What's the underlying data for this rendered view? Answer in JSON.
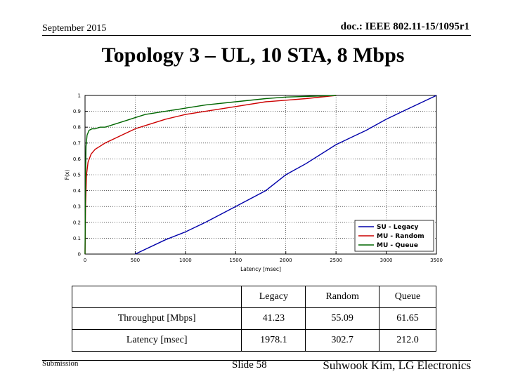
{
  "header": {
    "date": "September 2015",
    "doc_id": "doc.: IEEE 802.11-15/1095r1"
  },
  "slide": {
    "title": "Topology 3 – UL, 10 STA, 8 Mbps"
  },
  "chart_data": {
    "type": "line",
    "xlabel": "Latency [msec]",
    "ylabel": "F(x)",
    "xlim": [
      0,
      3500
    ],
    "ylim": [
      0,
      1
    ],
    "xticks": [
      0,
      500,
      1000,
      1500,
      2000,
      2500,
      3000,
      3500
    ],
    "yticks": [
      0,
      0.1,
      0.2,
      0.3,
      0.4,
      0.5,
      0.6,
      0.7,
      0.8,
      0.9,
      1
    ],
    "grid": true,
    "legend_position": "bottom-right",
    "series": [
      {
        "name": "SU - Legacy",
        "color": "#0000aa",
        "x": [
          500,
          800,
          1000,
          1200,
          1500,
          1800,
          2000,
          2200,
          2500,
          2800,
          3000,
          3200,
          3500
        ],
        "y": [
          0.0,
          0.09,
          0.14,
          0.2,
          0.3,
          0.4,
          0.5,
          0.57,
          0.69,
          0.78,
          0.85,
          0.91,
          1.0
        ]
      },
      {
        "name": "MU - Random",
        "color": "#cc0000",
        "x": [
          0,
          5,
          15,
          30,
          60,
          100,
          150,
          200,
          300,
          400,
          500,
          600,
          700,
          800,
          1000,
          1200,
          1500,
          1800,
          2000,
          2200,
          2500
        ],
        "y": [
          0.0,
          0.3,
          0.5,
          0.58,
          0.63,
          0.66,
          0.68,
          0.7,
          0.73,
          0.76,
          0.79,
          0.81,
          0.83,
          0.85,
          0.88,
          0.9,
          0.93,
          0.96,
          0.97,
          0.98,
          1.0
        ]
      },
      {
        "name": "MU - Queue",
        "color": "#006600",
        "x": [
          0,
          5,
          10,
          20,
          40,
          70,
          100,
          150,
          200,
          300,
          400,
          500,
          600,
          800,
          1000,
          1200,
          1500,
          1800,
          2000,
          2500
        ],
        "y": [
          0.0,
          0.5,
          0.68,
          0.75,
          0.78,
          0.79,
          0.79,
          0.8,
          0.8,
          0.82,
          0.84,
          0.86,
          0.88,
          0.9,
          0.92,
          0.94,
          0.96,
          0.98,
          0.99,
          1.0
        ]
      }
    ]
  },
  "table": {
    "headers": [
      "",
      "Legacy",
      "Random",
      "Queue"
    ],
    "rows": [
      [
        "Throughput [Mbps]",
        "41.23",
        "55.09",
        "61.65"
      ],
      [
        "Latency [msec]",
        "1978.1",
        "302.7",
        "212.0"
      ]
    ]
  },
  "footer": {
    "submission": "Submission",
    "slide": "Slide 58",
    "author": "Suhwook Kim, LG Electronics"
  }
}
